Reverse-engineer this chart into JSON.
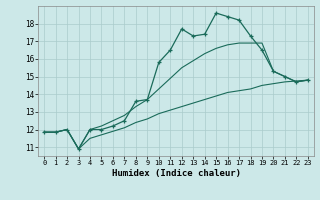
{
  "xlabel": "Humidex (Indice chaleur)",
  "bg_color": "#cce8e8",
  "grid_color": "#aacccc",
  "line_color": "#1a6b5a",
  "xlim": [
    -0.5,
    23.5
  ],
  "ylim": [
    10.5,
    19.0
  ],
  "yticks": [
    11,
    12,
    13,
    14,
    15,
    16,
    17,
    18
  ],
  "xticks": [
    0,
    1,
    2,
    3,
    4,
    5,
    6,
    7,
    8,
    9,
    10,
    11,
    12,
    13,
    14,
    15,
    16,
    17,
    18,
    19,
    20,
    21,
    22,
    23
  ],
  "line1_x": [
    0,
    1,
    2,
    3,
    4,
    5,
    6,
    7,
    8,
    9,
    10,
    11,
    12,
    13,
    14,
    15,
    16,
    17,
    18,
    19,
    20,
    21,
    22,
    23
  ],
  "line1_y": [
    11.85,
    11.85,
    12.0,
    10.9,
    12.0,
    12.0,
    12.2,
    12.5,
    13.6,
    13.7,
    15.8,
    16.5,
    17.7,
    17.3,
    17.4,
    18.6,
    18.4,
    18.2,
    17.3,
    16.5,
    15.3,
    15.0,
    14.7,
    14.8
  ],
  "line2_x": [
    0,
    23
  ],
  "line2_y": [
    11.85,
    14.8
  ],
  "line3_x": [
    0,
    23
  ],
  "line3_y": [
    11.85,
    14.8
  ],
  "lower_x": [
    0,
    1,
    2,
    3,
    4,
    5,
    6,
    7,
    8,
    9,
    10,
    11,
    12,
    13,
    14,
    15,
    16,
    17,
    18,
    19,
    20,
    21,
    22,
    23
  ],
  "lower_y": [
    11.85,
    11.85,
    12.0,
    10.9,
    11.5,
    11.7,
    11.9,
    12.1,
    12.4,
    12.6,
    12.9,
    13.1,
    13.3,
    13.5,
    13.7,
    13.9,
    14.1,
    14.2,
    14.3,
    14.5,
    14.6,
    14.7,
    14.75,
    14.8
  ],
  "upper_x": [
    0,
    1,
    2,
    3,
    4,
    5,
    6,
    7,
    8,
    9,
    10,
    11,
    12,
    13,
    14,
    15,
    16,
    17,
    18,
    19,
    20,
    21,
    22,
    23
  ],
  "upper_y": [
    11.85,
    11.85,
    12.0,
    10.9,
    12.0,
    12.2,
    12.5,
    12.8,
    13.3,
    13.7,
    14.3,
    14.9,
    15.5,
    15.9,
    16.3,
    16.6,
    16.8,
    16.9,
    16.9,
    16.9,
    15.3,
    15.0,
    14.7,
    14.8
  ]
}
